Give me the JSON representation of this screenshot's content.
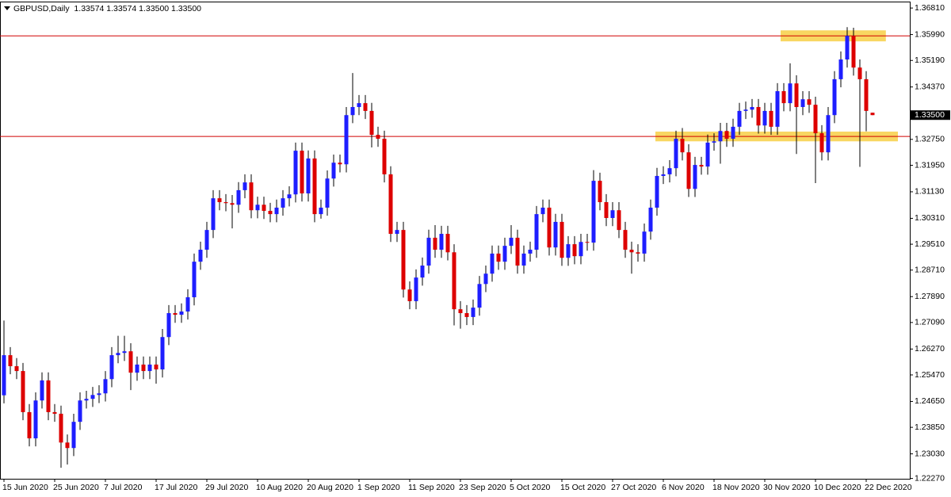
{
  "chart_data": {
    "type": "candlestick",
    "title": "GBPUSD,Daily  1.33574 1.33574 1.33500 1.33500",
    "categories": [
      "15 Jun 2020",
      null,
      null,
      null,
      null,
      null,
      null,
      null,
      "25 Jun 2020",
      null,
      null,
      null,
      null,
      null,
      null,
      null,
      "7 Jul 2020",
      null,
      null,
      null,
      null,
      null,
      null,
      null,
      "17 Jul 2020",
      null,
      null,
      null,
      null,
      null,
      null,
      null,
      "29 Jul 2020",
      null,
      null,
      null,
      null,
      null,
      null,
      null,
      "10 Aug 2020",
      null,
      null,
      null,
      null,
      null,
      null,
      null,
      "20 Aug 2020",
      null,
      null,
      null,
      null,
      null,
      null,
      null,
      "1 Sep 2020",
      null,
      null,
      null,
      null,
      null,
      null,
      null,
      "11 Sep 2020",
      null,
      null,
      null,
      null,
      null,
      null,
      null,
      "23 Sep 2020",
      null,
      null,
      null,
      null,
      null,
      null,
      null,
      "5 Oct 2020",
      null,
      null,
      null,
      null,
      null,
      null,
      null,
      "15 Oct 2020",
      null,
      null,
      null,
      null,
      null,
      null,
      null,
      "27 Oct 2020",
      null,
      null,
      null,
      null,
      null,
      null,
      null,
      "6 Nov 2020",
      null,
      null,
      null,
      null,
      null,
      null,
      null,
      "18 Nov 2020",
      null,
      null,
      null,
      null,
      null,
      null,
      null,
      "30 Nov 2020",
      null,
      null,
      null,
      null,
      null,
      null,
      null,
      "10 Dec 2020",
      null,
      null,
      null,
      null,
      null,
      null,
      null,
      "22 Dec 2020",
      null
    ],
    "open": [
      1.2484,
      1.2608,
      1.2574,
      1.2559,
      1.2432,
      1.2351,
      1.2468,
      1.253,
      1.2432,
      1.2427,
      1.2338,
      1.2321,
      1.2402,
      1.2468,
      1.2473,
      1.2485,
      1.249,
      1.2534,
      1.2608,
      1.2615,
      1.262,
      1.2554,
      1.2579,
      1.2559,
      1.2579,
      1.2564,
      1.2664,
      1.2738,
      1.2733,
      1.2743,
      1.2787,
      1.2897,
      1.2934,
      1.2995,
      1.3093,
      1.3081,
      1.3078,
      1.3073,
      1.3118,
      1.3142,
      1.3056,
      1.3073,
      1.3054,
      1.3044,
      1.3064,
      1.3093,
      1.3105,
      1.324,
      1.3108,
      1.3216,
      1.3044,
      1.3064,
      1.3154,
      1.3203,
      1.3198,
      1.335,
      1.3375,
      1.3387,
      1.3363,
      1.3289,
      1.3277,
      1.3167,
      1.2983,
      1.2995,
      1.2811,
      1.2775,
      1.2848,
      1.2885,
      1.2971,
      1.2934,
      1.2983,
      1.2926,
      1.275,
      1.2738,
      1.2726,
      1.2755,
      1.2828,
      1.286,
      1.2922,
      1.2897,
      1.2946,
      1.2971,
      1.2885,
      1.2922,
      1.2934,
      1.3044,
      1.3064,
      1.2941,
      1.302,
      1.2909,
      1.2951,
      1.2914,
      1.2958,
      1.2956,
      1.3147,
      1.3081,
      1.3032,
      1.3056,
      1.2995,
      1.2934,
      1.2926,
      1.2922,
      1.299,
      1.3064,
      1.3162,
      1.3167,
      1.3186,
      1.3277,
      1.3235,
      1.3122,
      1.3196,
      1.3191,
      1.3265,
      1.3269,
      1.3301,
      1.3277,
      1.3314,
      1.3363,
      1.3367,
      1.3375,
      1.3318,
      1.3363,
      1.3314,
      1.3424,
      1.3387,
      1.3448,
      1.3375,
      1.3399,
      1.3382,
      1.3294,
      1.3235,
      1.335,
      1.3461,
      1.3522,
      1.3595,
      1.3497,
      1.3461,
      1.33574
    ],
    "high": [
      1.2715,
      1.2633,
      1.2599,
      1.2584,
      1.2457,
      1.2493,
      1.2555,
      1.2555,
      1.2457,
      1.2452,
      1.2363,
      1.2427,
      1.2493,
      1.2498,
      1.251,
      1.2515,
      1.2559,
      1.2633,
      1.2668,
      1.2668,
      1.2645,
      1.2604,
      1.2604,
      1.2604,
      1.2604,
      1.2689,
      1.2763,
      1.2763,
      1.2768,
      1.2812,
      1.2922,
      1.2959,
      1.302,
      1.3118,
      1.3118,
      1.3106,
      1.3103,
      1.3143,
      1.3167,
      1.3167,
      1.3098,
      1.3098,
      1.3079,
      1.3089,
      1.3118,
      1.313,
      1.3265,
      1.3265,
      1.3241,
      1.3241,
      1.3089,
      1.3179,
      1.3228,
      1.3228,
      1.3375,
      1.348,
      1.3412,
      1.3412,
      1.3388,
      1.3314,
      1.3302,
      1.3192,
      1.302,
      1.302,
      1.2836,
      1.2873,
      1.291,
      1.2996,
      1.301,
      1.3008,
      1.3008,
      1.2951,
      1.2775,
      1.2763,
      1.278,
      1.2853,
      1.2885,
      1.2947,
      1.2947,
      1.2971,
      1.301,
      1.2996,
      1.2947,
      1.2959,
      1.3069,
      1.3089,
      1.3089,
      1.3045,
      1.3045,
      1.2976,
      1.2976,
      1.2983,
      1.2983,
      1.318,
      1.3172,
      1.3106,
      1.3081,
      1.3081,
      1.302,
      1.2959,
      1.2951,
      1.3015,
      1.3089,
      1.3187,
      1.3192,
      1.3211,
      1.3302,
      1.331,
      1.326,
      1.3221,
      1.3221,
      1.329,
      1.3294,
      1.3326,
      1.3326,
      1.3339,
      1.3388,
      1.3392,
      1.34,
      1.34,
      1.3388,
      1.3388,
      1.3449,
      1.3449,
      1.351,
      1.3473,
      1.3424,
      1.3424,
      1.3407,
      1.3319,
      1.3375,
      1.3486,
      1.3547,
      1.3622,
      1.362,
      1.3522,
      1.3486,
      1.33574
    ],
    "low": [
      1.2459,
      1.2549,
      1.2534,
      1.2407,
      1.2326,
      1.2326,
      1.2443,
      1.2407,
      1.2402,
      1.226,
      1.227,
      1.2296,
      1.2377,
      1.2443,
      1.2448,
      1.246,
      1.2465,
      1.2509,
      1.2583,
      1.259,
      1.25,
      1.2529,
      1.2534,
      1.2534,
      1.252,
      1.2539,
      1.2639,
      1.2708,
      1.2708,
      1.2718,
      1.2762,
      1.2872,
      1.2909,
      1.297,
      1.3056,
      1.3053,
      1.3,
      1.3048,
      1.3093,
      1.3031,
      1.3031,
      1.3029,
      1.3019,
      1.3019,
      1.3039,
      1.3068,
      1.308,
      1.3083,
      1.3083,
      1.3019,
      1.303,
      1.3039,
      1.3129,
      1.3173,
      1.3173,
      1.3325,
      1.335,
      1.3338,
      1.325,
      1.3252,
      1.3142,
      1.2958,
      1.2958,
      1.2786,
      1.275,
      1.275,
      1.2823,
      1.286,
      1.2909,
      1.2909,
      1.2901,
      1.27,
      1.269,
      1.2701,
      1.2701,
      1.273,
      1.2803,
      1.2835,
      1.2872,
      1.2872,
      1.2921,
      1.286,
      1.286,
      1.2897,
      1.2909,
      1.3019,
      1.2916,
      1.2916,
      1.2884,
      1.2884,
      1.2889,
      1.2889,
      1.2931,
      1.2931,
      1.3056,
      1.3007,
      1.3007,
      1.297,
      1.2909,
      1.286,
      1.2897,
      1.2897,
      1.2965,
      1.3039,
      1.3137,
      1.3142,
      1.3161,
      1.321,
      1.3097,
      1.3097,
      1.3166,
      1.3166,
      1.324,
      1.32,
      1.3252,
      1.3252,
      1.3289,
      1.3338,
      1.3342,
      1.3293,
      1.3293,
      1.3289,
      1.3289,
      1.3362,
      1.3362,
      1.323,
      1.335,
      1.3357,
      1.314,
      1.321,
      1.321,
      1.3325,
      1.3436,
      1.3497,
      1.3472,
      1.319,
      1.33,
      1.335
    ],
    "close": [
      1.2608,
      1.2574,
      1.2559,
      1.2432,
      1.2351,
      1.2468,
      1.253,
      1.2432,
      1.2427,
      1.2338,
      1.2321,
      1.2402,
      1.2468,
      1.2473,
      1.2485,
      1.249,
      1.2534,
      1.2608,
      1.2615,
      1.262,
      1.2554,
      1.2579,
      1.2559,
      1.2579,
      1.2564,
      1.2664,
      1.2738,
      1.2733,
      1.2743,
      1.2787,
      1.2897,
      1.2934,
      1.2995,
      1.3093,
      1.3081,
      1.3078,
      1.3073,
      1.3118,
      1.3142,
      1.3056,
      1.3073,
      1.3054,
      1.3044,
      1.3064,
      1.3093,
      1.3105,
      1.324,
      1.3108,
      1.3216,
      1.3044,
      1.3064,
      1.3154,
      1.3203,
      1.3198,
      1.335,
      1.3375,
      1.3387,
      1.3363,
      1.3289,
      1.3277,
      1.3167,
      1.2983,
      1.2995,
      1.2811,
      1.2775,
      1.2848,
      1.2885,
      1.2971,
      1.2934,
      1.2983,
      1.2926,
      1.275,
      1.2738,
      1.2726,
      1.2755,
      1.2828,
      1.286,
      1.2922,
      1.2897,
      1.2946,
      1.2971,
      1.2885,
      1.2922,
      1.2934,
      1.3044,
      1.3064,
      1.2941,
      1.302,
      1.2909,
      1.2951,
      1.2914,
      1.2958,
      1.2956,
      1.3147,
      1.3081,
      1.3032,
      1.3056,
      1.2995,
      1.2934,
      1.2926,
      1.2922,
      1.299,
      1.3064,
      1.3162,
      1.3167,
      1.3186,
      1.3277,
      1.3235,
      1.3122,
      1.3196,
      1.3191,
      1.3265,
      1.3269,
      1.3301,
      1.3277,
      1.3314,
      1.3363,
      1.3367,
      1.3375,
      1.3318,
      1.3363,
      1.3314,
      1.3424,
      1.3387,
      1.3448,
      1.3375,
      1.3399,
      1.3382,
      1.3294,
      1.3235,
      1.335,
      1.3461,
      1.3522,
      1.3595,
      1.3497,
      1.3461,
      1.3363,
      1.335
    ],
    "up_color": "#1e1eff",
    "down_color": "#dd0000",
    "wick_color": "#000000",
    "ylim": [
      1.2226,
      1.3696
    ],
    "yticks": [
      {
        "value": 1.3681,
        "label": "1.36810"
      },
      {
        "value": 1.3599,
        "label": "1.35990"
      },
      {
        "value": 1.3519,
        "label": "1.35190"
      },
      {
        "value": 1.3437,
        "label": "1.34370"
      },
      {
        "value": 1.3275,
        "label": "1.32750"
      },
      {
        "value": 1.3195,
        "label": "1.31950"
      },
      {
        "value": 1.3113,
        "label": "1.31130"
      },
      {
        "value": 1.3031,
        "label": "1.30310"
      },
      {
        "value": 1.2951,
        "label": "1.29510"
      },
      {
        "value": 1.2871,
        "label": "1.28710"
      },
      {
        "value": 1.2789,
        "label": "1.27890"
      },
      {
        "value": 1.2709,
        "label": "1.27090"
      },
      {
        "value": 1.2627,
        "label": "1.26270"
      },
      {
        "value": 1.2547,
        "label": "1.25470"
      },
      {
        "value": 1.2465,
        "label": "1.24650"
      },
      {
        "value": 1.2385,
        "label": "1.23850"
      },
      {
        "value": 1.2303,
        "label": "1.23030"
      },
      {
        "value": 1.2227,
        "label": "1.22270"
      }
    ],
    "current_price": {
      "value": 1.335,
      "label": "1.33500"
    },
    "hlines": [
      1.3595,
      1.3284
    ],
    "hline_color": "#d00000",
    "zones": [
      {
        "ymin": 1.3578,
        "ymax": 1.3612,
        "xmin": 122.5,
        "xmax": 139.1
      },
      {
        "ymin": 1.3269,
        "ymax": 1.3299,
        "xmin": 102.75,
        "xmax": 141
      }
    ],
    "zone_color": "#f7cf45",
    "grid": false
  }
}
